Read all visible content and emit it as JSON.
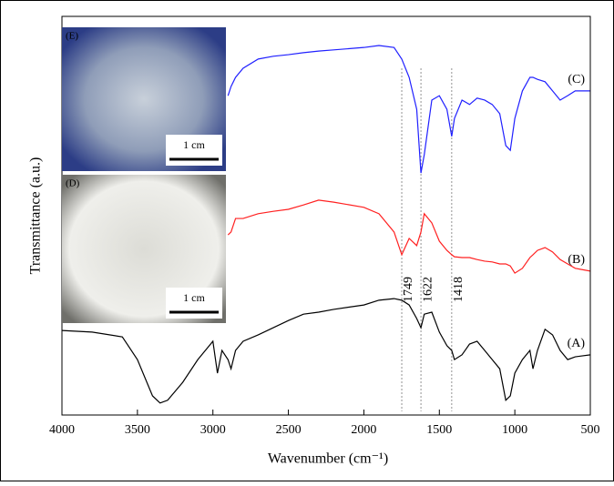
{
  "chart_data": {
    "type": "line",
    "xlabel": "Wavenumber (cm⁻¹)",
    "ylabel": "Transmittance (a.u.)",
    "x": [
      4000,
      3800,
      3600,
      3500,
      3400,
      3350,
      3300,
      3200,
      3100,
      3000,
      2970,
      2940,
      2900,
      2880,
      2850,
      2800,
      2700,
      2600,
      2500,
      2400,
      2300,
      2200,
      2000,
      1900,
      1800,
      1749,
      1700,
      1650,
      1622,
      1600,
      1550,
      1500,
      1450,
      1418,
      1400,
      1350,
      1300,
      1250,
      1200,
      1150,
      1100,
      1060,
      1030,
      1000,
      950,
      900,
      880,
      850,
      800,
      750,
      700,
      650,
      600,
      500
    ],
    "xlim": [
      4000,
      500
    ],
    "xticks": [
      4000,
      3500,
      3000,
      2500,
      2000,
      1500,
      1000,
      500
    ],
    "ylim": [
      0,
      100
    ],
    "series": [
      {
        "name": "(A)",
        "color": "#000000",
        "values": [
          21.2,
          20.8,
          19.6,
          13.9,
          4.8,
          3.0,
          3.7,
          8.2,
          13.9,
          18.5,
          10.5,
          16.2,
          13.9,
          11.6,
          16.2,
          18.5,
          20.1,
          21.9,
          23.7,
          25.3,
          25.8,
          26.5,
          27.6,
          28.8,
          29.2,
          28.8,
          27.6,
          24.2,
          21.9,
          25.3,
          25.8,
          20.8,
          17.4,
          16.2,
          13.9,
          15.1,
          17.8,
          18.5,
          16.2,
          13.9,
          11.6,
          3.7,
          4.8,
          10.5,
          13.9,
          16.2,
          11.6,
          16.2,
          21.5,
          20.1,
          16.2,
          13.9,
          14.6,
          15.1
        ]
      },
      {
        "name": "(B)",
        "color": "#ff2020",
        "values": [
          null,
          null,
          null,
          null,
          null,
          null,
          null,
          null,
          null,
          null,
          null,
          null,
          45.2,
          45.9,
          49.3,
          49.3,
          50.5,
          51.1,
          51.6,
          52.7,
          53.9,
          53.4,
          52.1,
          50.5,
          45.9,
          40.2,
          44.3,
          42.5,
          45.9,
          50.5,
          48.2,
          43.6,
          41.3,
          40.2,
          39.7,
          39.5,
          39.5,
          39.0,
          38.6,
          38.4,
          37.9,
          37.9,
          37.4,
          35.6,
          36.8,
          39.5,
          40.2,
          41.3,
          42.0,
          40.9,
          39.0,
          37.9,
          36.8,
          36.1
        ]
      },
      {
        "name": "(C)",
        "color": "#2020ff",
        "values": [
          null,
          null,
          null,
          null,
          null,
          null,
          null,
          null,
          null,
          null,
          null,
          null,
          80.1,
          82.4,
          84.7,
          87.0,
          89.3,
          90.0,
          90.4,
          90.9,
          91.3,
          91.6,
          92.2,
          92.7,
          92.2,
          89.3,
          84.7,
          76.7,
          60.7,
          65.3,
          79.0,
          80.1,
          76.7,
          69.9,
          74.4,
          79.0,
          77.9,
          79.5,
          79.0,
          77.9,
          75.6,
          67.6,
          66.4,
          74.4,
          81.3,
          84.7,
          84.7,
          84.2,
          83.6,
          81.3,
          79.0,
          80.1,
          81.3,
          81.3
        ]
      }
    ],
    "annotations": [
      1749,
      1622,
      1418
    ],
    "insets": [
      {
        "label": "(E)",
        "scale": "1 cm"
      },
      {
        "label": "(D)",
        "scale": "1 cm"
      }
    ]
  }
}
